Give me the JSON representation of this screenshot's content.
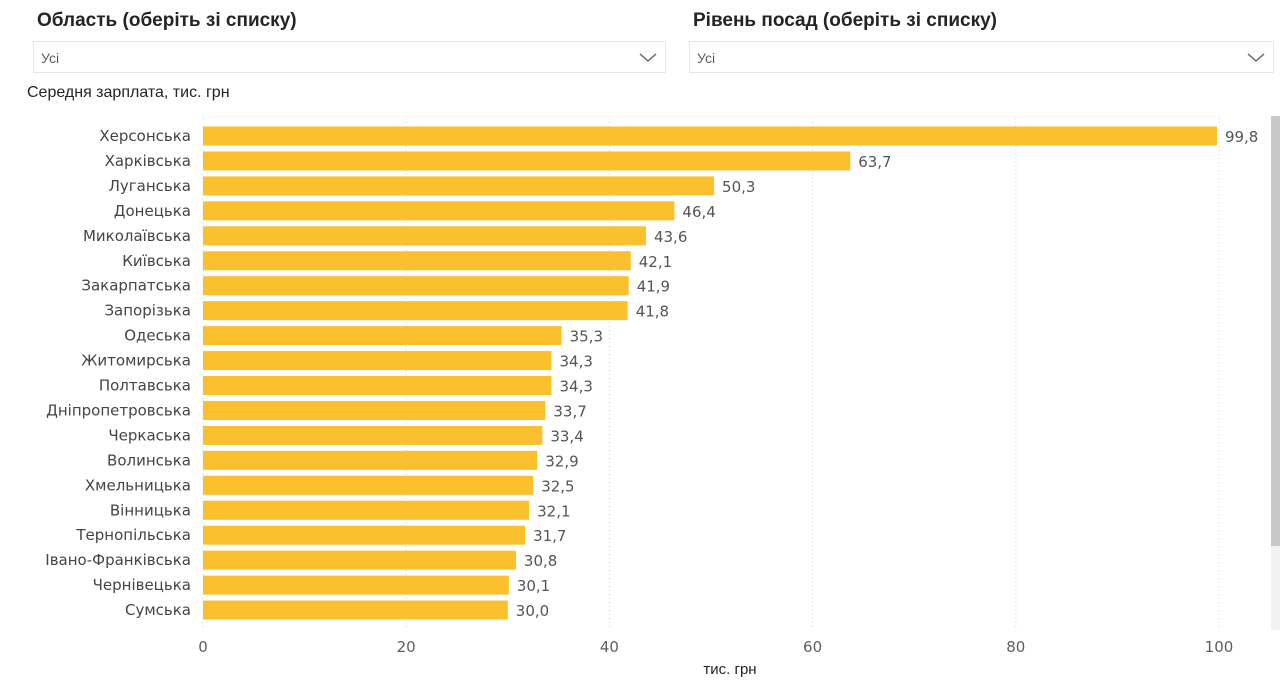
{
  "filters": [
    {
      "title": "Область (оберіть зі списку)",
      "value": "Усі"
    },
    {
      "title": "Рівень посад (оберіть зі списку)",
      "value": "Усі"
    }
  ],
  "chart_data": {
    "type": "bar",
    "orientation": "horizontal",
    "title": "Середня зарплата, тис. грн",
    "xlabel": "тис. грн",
    "ylabel": "",
    "xlim": [
      0,
      100
    ],
    "xticks": [
      0,
      20,
      40,
      60,
      80,
      100
    ],
    "grid": "vertical dotted",
    "color": "#FBC02D",
    "categories": [
      "Херсонська",
      "Харківська",
      "Луганська",
      "Донецька",
      "Миколаївська",
      "Київська",
      "Закарпатська",
      "Запорізька",
      "Одеська",
      "Житомирська",
      "Полтавська",
      "Дніпропетровська",
      "Черкаська",
      "Волинська",
      "Хмельницька",
      "Вінницька",
      "Тернопільська",
      "Івано-Франківська",
      "Чернівецька",
      "Сумська"
    ],
    "values": [
      99.8,
      63.7,
      50.3,
      46.4,
      43.6,
      42.1,
      41.9,
      41.8,
      35.3,
      34.3,
      34.3,
      33.7,
      33.4,
      32.9,
      32.5,
      32.1,
      31.7,
      30.8,
      30.1,
      30.0
    ]
  }
}
